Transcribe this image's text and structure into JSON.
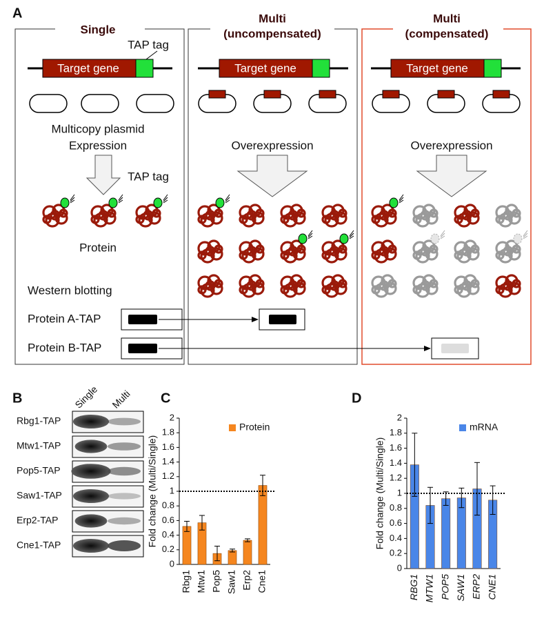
{
  "panel_a": {
    "label": "A",
    "columns": [
      {
        "title_lines": [
          "Single"
        ],
        "gene_label": "Target gene",
        "tag_label": "TAP tag",
        "caption_lines": [
          "Multicopy plasmid",
          "Expression"
        ],
        "protein_tag_label": "TAP tag",
        "protein_label": "Protein"
      },
      {
        "title_lines": [
          "Multi",
          "(uncompensated)"
        ],
        "gene_label": "Target gene",
        "caption_lines": [
          "Overexpression"
        ]
      },
      {
        "title_lines": [
          "Multi",
          "(compensated)"
        ],
        "gene_label": "Target gene",
        "caption_lines": [
          "Overexpression"
        ]
      }
    ],
    "western_title": "Western blotting",
    "blots": [
      "Protein A-TAP",
      "Protein B-TAP"
    ]
  },
  "panel_b": {
    "label": "B",
    "lanes": [
      "Single",
      "Multi"
    ],
    "rows": [
      "Rbg1-TAP",
      "Mtw1-TAP",
      "Pop5-TAP",
      "Saw1-TAP",
      "Erp2-TAP",
      "Cne1-TAP"
    ]
  },
  "chart_data": [
    {
      "type": "bar",
      "panel_label": "C",
      "ylabel": "Fold change (Multi/Single)",
      "categories": [
        "Rbg1",
        "Mtw1",
        "Pop5",
        "Saw1",
        "Erp2",
        "Cne1"
      ],
      "series": [
        {
          "name": "Protein",
          "color": "#f5861f",
          "values": [
            0.52,
            0.57,
            0.15,
            0.19,
            0.33,
            1.08
          ],
          "errors": [
            0.07,
            0.1,
            0.1,
            0.02,
            0.02,
            0.14
          ]
        }
      ],
      "ylim": [
        0,
        2
      ],
      "yticks": [
        0,
        0.2,
        0.4,
        0.6,
        0.8,
        1,
        1.2,
        1.4,
        1.6,
        1.8,
        2
      ],
      "reference_line": 1,
      "legend": "top-right",
      "category_style": "normal"
    },
    {
      "type": "bar",
      "panel_label": "D",
      "ylabel": "Fold change (Multi/Single)",
      "categories": [
        "RBG1",
        "MTW1",
        "POP5",
        "SAW1",
        "ERP2",
        "CNE1"
      ],
      "series": [
        {
          "name": "mRNA",
          "color": "#4a86e8",
          "values": [
            1.38,
            0.84,
            0.93,
            0.94,
            1.06,
            0.91
          ],
          "errors": [
            0.42,
            0.24,
            0.09,
            0.13,
            0.35,
            0.19
          ]
        }
      ],
      "ylim": [
        0,
        2
      ],
      "yticks": [
        0,
        0.2,
        0.4,
        0.6,
        0.8,
        1,
        1.2,
        1.4,
        1.6,
        1.8,
        2
      ],
      "reference_line": 1,
      "legend": "top-right",
      "category_style": "italic"
    }
  ]
}
